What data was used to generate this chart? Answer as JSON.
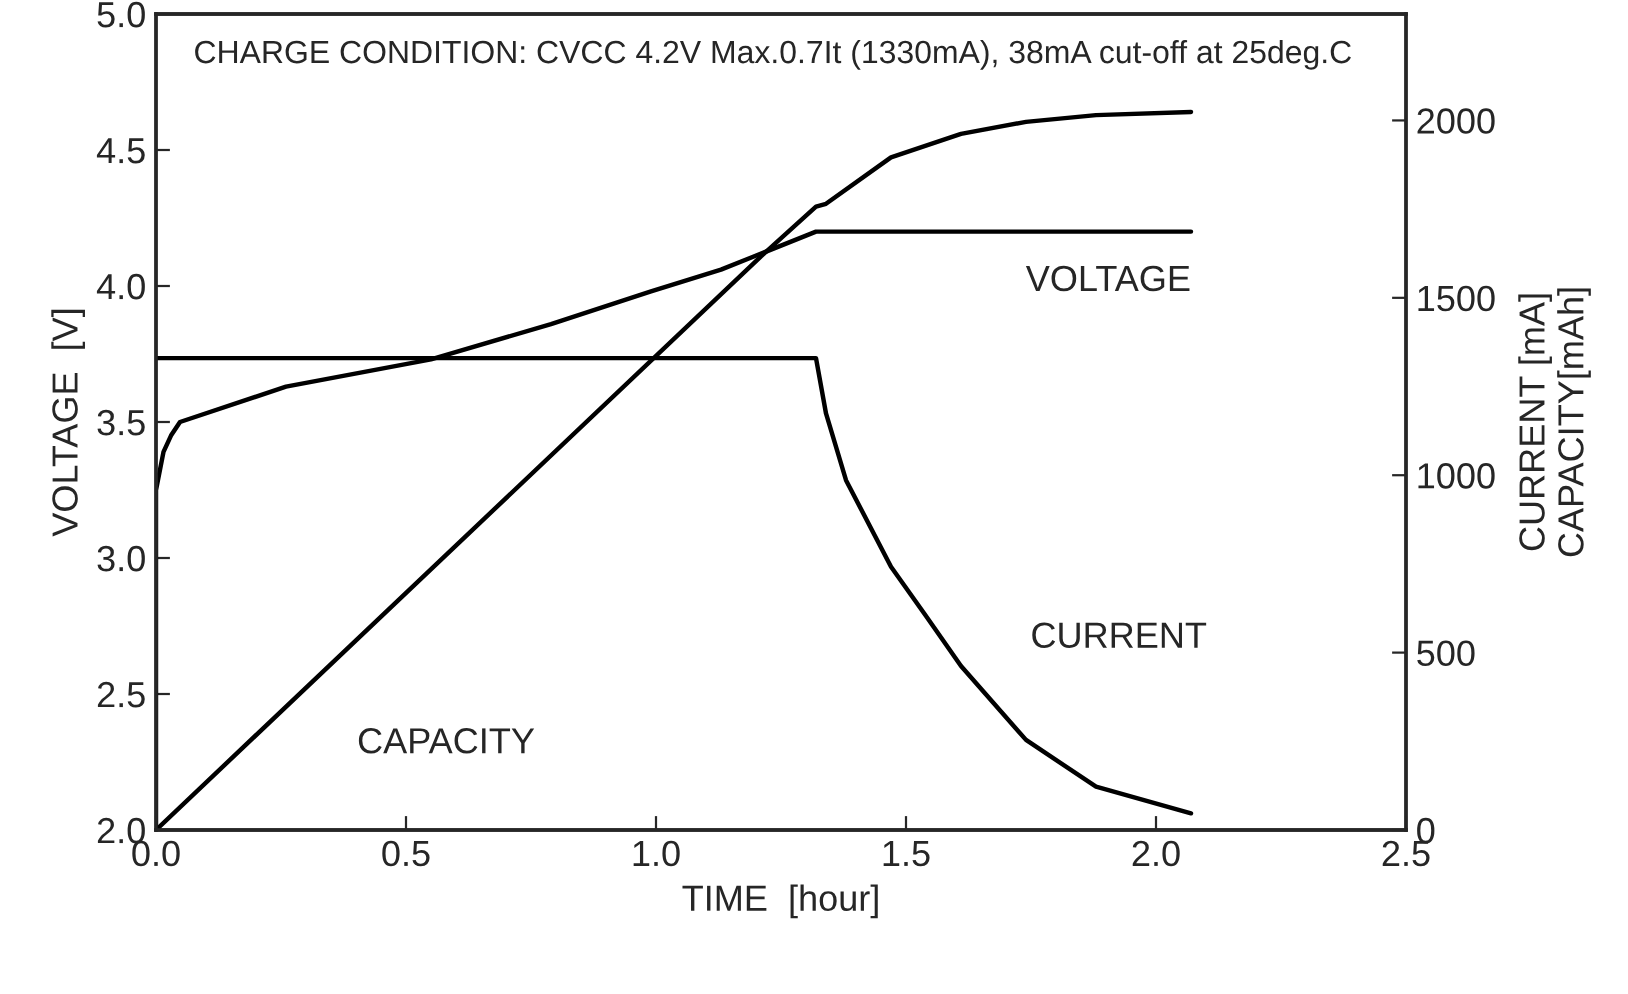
{
  "chart_data": {
    "type": "line",
    "xlabel": "TIME  [hour]",
    "ylabel": "VOLTAGE  [V]",
    "y2label": "CURRENT [mA]\nCAPACITY[mAh]",
    "annotations": [
      "CHARGE CONDITION: CVCC 4.2V Max.0.7It (1330mA), 38mA cut-off at 25deg.C"
    ],
    "xlim": [
      0,
      2.5
    ],
    "xticks": [
      {
        "value": 0,
        "label": "0.0"
      },
      {
        "value": 0.5,
        "label": "0.5"
      },
      {
        "value": 1,
        "label": "1.0"
      },
      {
        "value": 1.5,
        "label": "1.5"
      },
      {
        "value": 2,
        "label": "2.0"
      },
      {
        "value": 2.5,
        "label": "2.5"
      }
    ],
    "ylim": [
      2,
      5
    ],
    "yticks": [
      {
        "value": 2,
        "label": "2.0"
      },
      {
        "value": 2.5,
        "label": "2.5"
      },
      {
        "value": 3,
        "label": "3.0"
      },
      {
        "value": 3.5,
        "label": "3.5"
      },
      {
        "value": 4,
        "label": "4.0"
      },
      {
        "value": 4.5,
        "label": "4.5"
      },
      {
        "value": 5,
        "label": "5.0"
      }
    ],
    "y2lim": [
      0,
      2300
    ],
    "y2ticks": [
      0,
      500,
      1000,
      1500,
      2000
    ],
    "grid": false,
    "legend": false,
    "marker": "none",
    "line_style": "solid",
    "series": [
      {
        "name": "VOLTAGE",
        "color": "#000000",
        "x": [
          0,
          0,
          0.015,
          0.03,
          0.048,
          0.26,
          0.55,
          0.79,
          0.99,
          1.13,
          1.32,
          2.07
        ],
        "values": [
          2.0,
          3.25,
          3.39,
          3.45,
          3.5,
          3.63,
          3.73,
          3.86,
          3.98,
          4.06,
          4.2,
          4.2
        ]
      },
      {
        "name": "CURRENT",
        "color": "#000000",
        "axis": "y2",
        "x": [
          0,
          1.32,
          1.34,
          1.38,
          1.47,
          1.54,
          1.61,
          1.74,
          1.88,
          2.07
        ],
        "values": [
          1330,
          1330,
          1174,
          986,
          742,
          603,
          462,
          254,
          122,
          47
        ]
      },
      {
        "name": "CAPACITY",
        "color": "#000000",
        "axis": "y2",
        "x": [
          0,
          1.21,
          1.32,
          1.34,
          1.47,
          1.61,
          1.74,
          1.88,
          2.07
        ],
        "values": [
          0,
          1617,
          1757,
          1765,
          1896,
          1962,
          1996,
          2015,
          2024
        ]
      }
    ]
  }
}
